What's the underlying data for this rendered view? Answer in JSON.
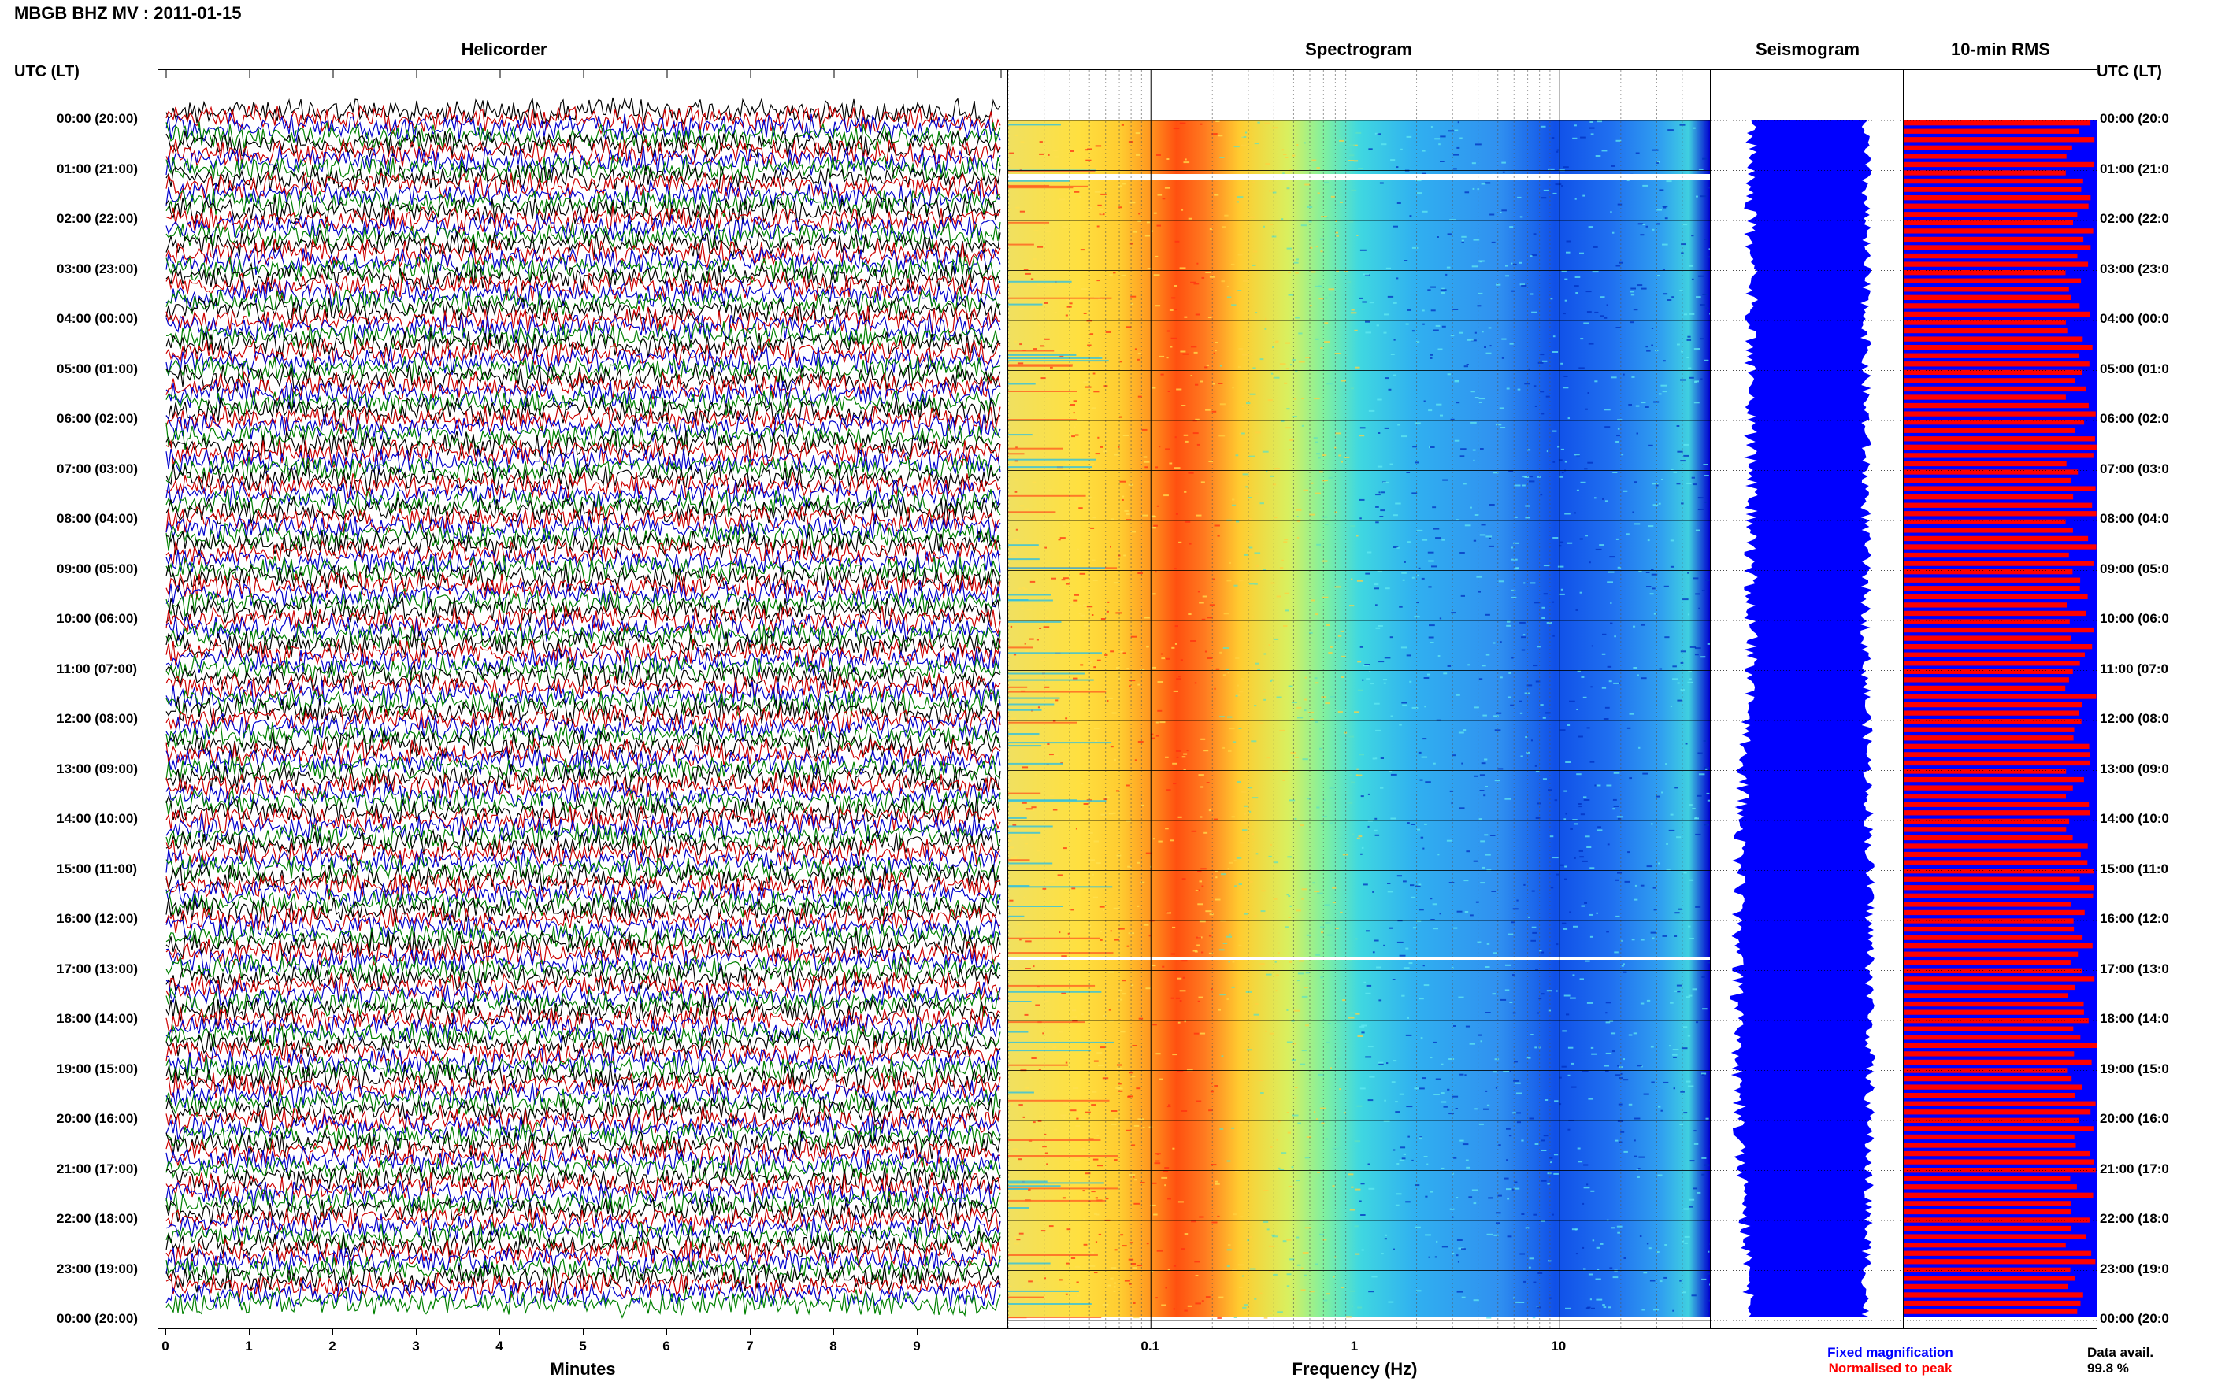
{
  "header": {
    "title": "MBGB BHZ MV : 2011-01-15",
    "left_axis_title": "UTC (LT)",
    "right_axis_title": "UTC (LT)"
  },
  "panels": {
    "helicorder_title": "Helicorder",
    "spectrogram_title": "Spectrogram",
    "seismogram_title": "Seismogram",
    "rms_title": "10-min RMS"
  },
  "hours": [
    "00:00 (20:00)",
    "01:00 (21:00)",
    "02:00 (22:00)",
    "03:00 (23:00)",
    "04:00 (00:00)",
    "05:00 (01:00)",
    "06:00 (02:00)",
    "07:00 (03:00)",
    "08:00 (04:00)",
    "09:00 (05:00)",
    "10:00 (06:00)",
    "11:00 (07:00)",
    "12:00 (08:00)",
    "13:00 (09:00)",
    "14:00 (10:00)",
    "15:00 (11:00)",
    "16:00 (12:00)",
    "17:00 (13:00)",
    "18:00 (14:00)",
    "19:00 (15:00)",
    "20:00 (16:00)",
    "21:00 (17:00)",
    "22:00 (18:00)",
    "23:00 (19:00)",
    "00:00 (20:00)"
  ],
  "hours_right": [
    "00:00 (20:0",
    "01:00 (21:0",
    "02:00 (22:0",
    "03:00 (23:0",
    "04:00 (00:0",
    "05:00 (01:0",
    "06:00 (02:0",
    "07:00 (03:0",
    "08:00 (04:0",
    "09:00 (05:0",
    "10:00 (06:0",
    "11:00 (07:0",
    "12:00 (08:0",
    "13:00 (09:0",
    "14:00 (10:0",
    "15:00 (11:0",
    "16:00 (12:0",
    "17:00 (13:0",
    "18:00 (14:0",
    "19:00 (15:0",
    "20:00 (16:0",
    "21:00 (17:0",
    "22:00 (18:0",
    "23:00 (19:0",
    "00:00 (20:0"
  ],
  "x_axes": {
    "helicorder_ticks": [
      "0",
      "1",
      "2",
      "3",
      "4",
      "5",
      "6",
      "7",
      "8",
      "9"
    ],
    "helicorder_label": "Minutes",
    "spectrogram_ticks": [
      "0.1",
      "1",
      "10"
    ],
    "spectrogram_label": "Frequency (Hz)"
  },
  "legend": {
    "fixed": "Fixed magnification",
    "normalised": "Normalised to peak",
    "data_avail_label": "Data avail.",
    "data_avail_value": "99.8 %"
  },
  "colors": {
    "helicorder_traces": [
      "#000000",
      "#cc0000",
      "#0000cc",
      "#008000"
    ],
    "seismogram_fill": "#0000ff",
    "rms_fixed": "#0000ff",
    "rms_normalised": "#ff0000",
    "legend_fixed": "#0000ff",
    "legend_normalised": "#ff0000"
  },
  "chart_data": [
    {
      "type": "line",
      "title": "Helicorder",
      "xlabel": "Minutes",
      "xlim": [
        0,
        10
      ],
      "rows": 144,
      "row_minutes": 10,
      "trace_color_cycle": [
        "black",
        "red",
        "blue",
        "green"
      ]
    },
    {
      "type": "heatmap",
      "title": "Spectrogram",
      "xlabel": "Frequency (Hz)",
      "xscale": "log",
      "xlim": [
        0.02,
        50
      ],
      "dominant_band_hz": [
        0.15,
        0.4
      ],
      "gaps_utc": [
        "01:05",
        "15:40"
      ]
    },
    {
      "type": "area",
      "title": "Seismogram",
      "rows": 144
    },
    {
      "type": "bar",
      "title": "10-min RMS",
      "bars": 144,
      "series": [
        {
          "name": "Fixed magnification",
          "values_relative": 1.0
        },
        {
          "name": "Normalised to peak",
          "values_relative": 0.88
        }
      ],
      "data_availability_percent": 99.8
    }
  ]
}
